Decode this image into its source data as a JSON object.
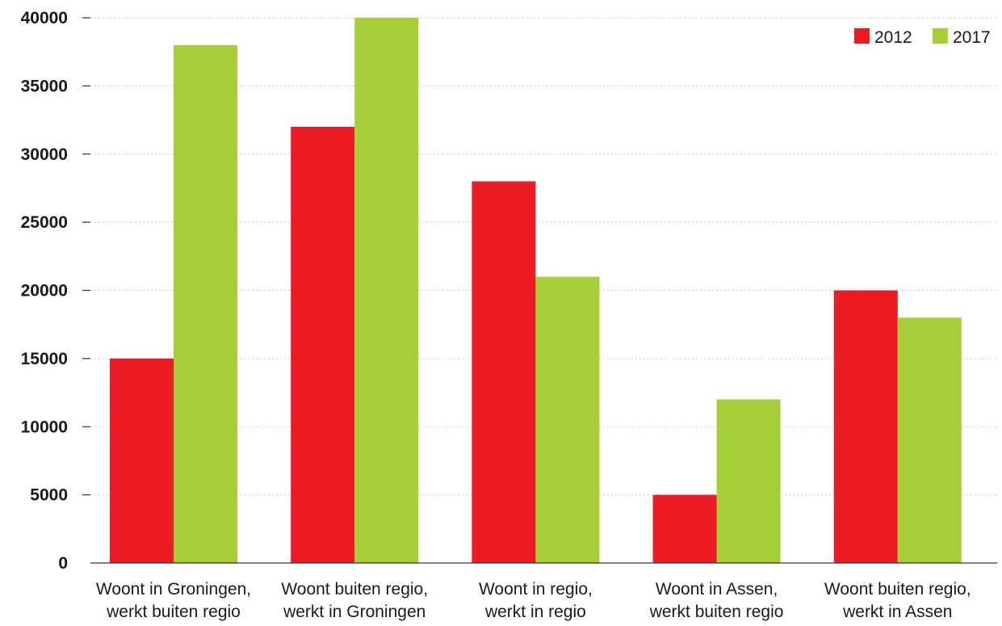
{
  "chart_data": {
    "type": "bar",
    "categories": [
      [
        "Woont in Groningen,",
        "werkt buiten regio"
      ],
      [
        "Woont buiten regio,",
        "werkt in Groningen"
      ],
      [
        "Woont in regio,",
        "werkt in regio"
      ],
      [
        "Woont in Assen,",
        "werkt buiten regio"
      ],
      [
        "Woont buiten regio,",
        "werkt in Assen"
      ]
    ],
    "series": [
      {
        "name": "2012",
        "color": "#ed1c24",
        "values": [
          15000,
          32000,
          28000,
          5000,
          20000
        ]
      },
      {
        "name": "2017",
        "color": "#a6ce39",
        "values": [
          38000,
          40000,
          21000,
          12000,
          18000
        ]
      }
    ],
    "yticks": [
      "0",
      "5000",
      "10000",
      "15000",
      "20000",
      "25000",
      "30000",
      "35000",
      "40000"
    ],
    "ylim": [
      0,
      40000
    ],
    "title": "",
    "xlabel": "",
    "ylabel": "",
    "grid": true,
    "legend_position": "top-right"
  }
}
